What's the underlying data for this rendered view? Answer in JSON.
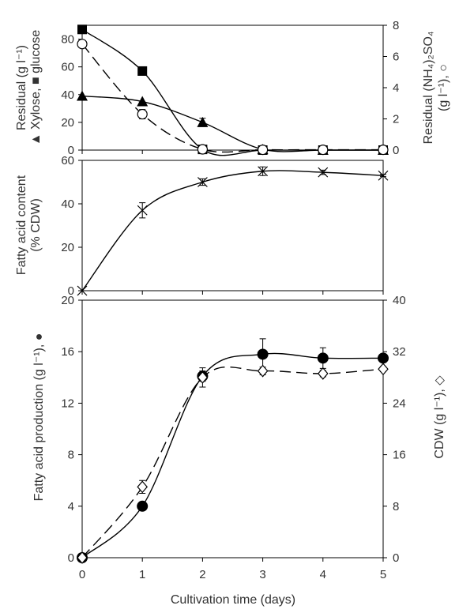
{
  "chart_data": [
    {
      "type": "line",
      "panel": "top",
      "x": [
        0,
        1,
        2,
        3,
        4,
        5
      ],
      "xlim": [
        0,
        5
      ],
      "ylim": [
        0,
        90
      ],
      "y2lim": [
        0,
        8
      ],
      "yticks": [
        "0",
        "20",
        "40",
        "60",
        "80"
      ],
      "y2ticks": [
        "0",
        "2",
        "4",
        "6",
        "8"
      ],
      "ylabel_lines": [
        "Residual (g l⁻¹)",
        "▲ Xylose, ■ glucose"
      ],
      "y2label_lines": [
        "Residual (NH₄)₂SO₄",
        "(g l⁻¹), ○"
      ],
      "series": [
        {
          "name": "glucose",
          "axis": "left",
          "marker": "square",
          "line": "solid",
          "color": "#000000",
          "values": [
            87,
            57,
            0.5,
            0,
            0,
            0
          ]
        },
        {
          "name": "Xylose",
          "axis": "left",
          "marker": "triangle",
          "line": "solid",
          "color": "#000000",
          "values": [
            39,
            35,
            20,
            0.5,
            0,
            0
          ],
          "errors": [
            0,
            0,
            3,
            0,
            0,
            0
          ]
        },
        {
          "name": "(NH₄)₂SO₄",
          "axis": "right",
          "marker": "circle-open",
          "line": "dashed",
          "color": "#000000",
          "values": [
            6.8,
            2.3,
            0.05,
            0.02,
            0.02,
            0.02
          ],
          "errors": [
            0,
            0.3,
            0,
            0,
            0,
            0
          ]
        }
      ]
    },
    {
      "type": "line",
      "panel": "middle",
      "x": [
        0,
        1,
        2,
        3,
        4,
        5
      ],
      "xlim": [
        0,
        5
      ],
      "ylim": [
        0,
        60
      ],
      "yticks": [
        "0",
        "20",
        "40",
        "60"
      ],
      "ylabel_lines": [
        "Fatty acid content",
        "(% CDW)"
      ],
      "series": [
        {
          "name": "Fatty acid content",
          "axis": "left",
          "marker": "cross",
          "line": "solid",
          "color": "#000000",
          "values": [
            0,
            37,
            50,
            55,
            54.5,
            53
          ],
          "errors": [
            0,
            3.5,
            1.5,
            2,
            1,
            0.5
          ]
        }
      ]
    },
    {
      "type": "line",
      "panel": "bottom",
      "x": [
        0,
        1,
        2,
        3,
        4,
        5
      ],
      "xlim": [
        0,
        5
      ],
      "ylim": [
        0,
        20
      ],
      "y2lim": [
        0,
        40
      ],
      "yticks": [
        "0",
        "4",
        "8",
        "12",
        "16",
        "20"
      ],
      "y2ticks": [
        "0",
        "8",
        "16",
        "24",
        "32",
        "40"
      ],
      "xticks": [
        "0",
        "1",
        "2",
        "3",
        "4",
        "5"
      ],
      "xlabel": "Cultivation time (days)",
      "ylabel": "Fatty acid production (g l⁻¹), ●",
      "y2label": "CDW (g l⁻¹), ◇",
      "series": [
        {
          "name": "Fatty acid production",
          "axis": "left",
          "marker": "circle-filled",
          "line": "solid",
          "color": "#000000",
          "values": [
            0,
            4,
            14.1,
            15.8,
            15.5,
            15.5
          ],
          "errors": [
            0,
            0.3,
            0.4,
            1.2,
            0.8,
            0.2
          ]
        },
        {
          "name": "CDW",
          "axis": "right",
          "marker": "diamond-open",
          "line": "dashed",
          "color": "#000000",
          "values": [
            0,
            11,
            28,
            29,
            28.6,
            29.3
          ],
          "errors": [
            0,
            1,
            1.5,
            0.6,
            0.5,
            0.4
          ]
        }
      ]
    }
  ]
}
